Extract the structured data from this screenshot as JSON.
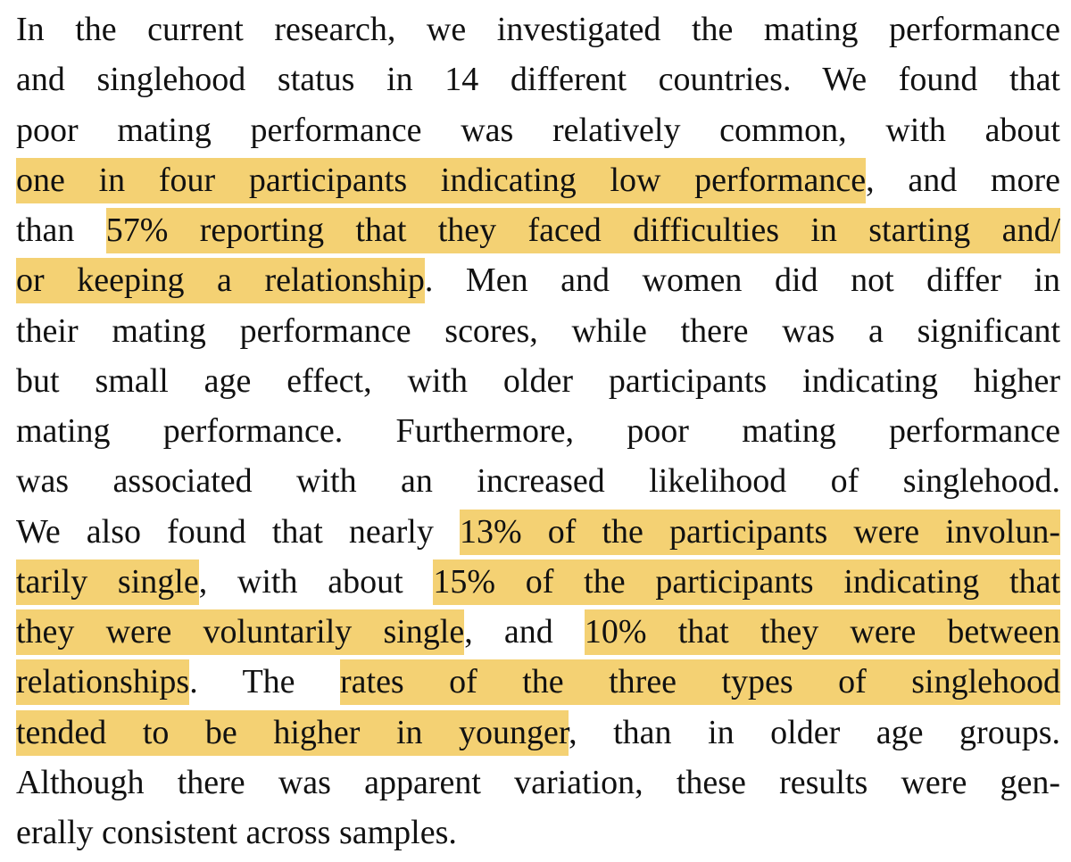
{
  "paragraph": {
    "lines": [
      {
        "segments": [
          {
            "text": "In the current research, we investigated the mating performance",
            "highlighted": false
          }
        ]
      },
      {
        "segments": [
          {
            "text": "and singlehood status in 14 different countries. We found that",
            "highlighted": false
          }
        ]
      },
      {
        "segments": [
          {
            "text": "poor mating performance was relatively common, with about",
            "highlighted": false
          }
        ]
      },
      {
        "segments": [
          {
            "text": "one in four participants indicating low performance",
            "highlighted": true
          },
          {
            "text": ", and more",
            "highlighted": false
          }
        ]
      },
      {
        "segments": [
          {
            "text": "than",
            "highlighted": false
          },
          {
            "text": "57% reporting that they faced difficulties in starting and/",
            "highlighted": true
          }
        ]
      },
      {
        "segments": [
          {
            "text": "or keeping a relationship",
            "highlighted": true
          },
          {
            "text": ". Men and women did not differ in",
            "highlighted": false
          }
        ]
      },
      {
        "segments": [
          {
            "text": "their mating performance scores, while there was a significant",
            "highlighted": false
          }
        ]
      },
      {
        "segments": [
          {
            "text": "but small age effect, with older participants indicating higher",
            "highlighted": false
          }
        ]
      },
      {
        "segments": [
          {
            "text": "mating performance. Furthermore, poor mating performance",
            "highlighted": false
          }
        ]
      },
      {
        "segments": [
          {
            "text": "was associated with an increased likelihood of singlehood.",
            "highlighted": false
          }
        ]
      },
      {
        "segments": [
          {
            "text": "We also found that nearly",
            "highlighted": false
          },
          {
            "text": "13% of the participants were involun-",
            "highlighted": true
          }
        ]
      },
      {
        "segments": [
          {
            "text": "tarily single",
            "highlighted": true
          },
          {
            "text": ", with about",
            "highlighted": false
          },
          {
            "text": "15% of the participants indicating that",
            "highlighted": true
          }
        ]
      },
      {
        "segments": [
          {
            "text": "they were voluntarily single",
            "highlighted": true
          },
          {
            "text": ", and",
            "highlighted": false
          },
          {
            "text": "10% that they were between",
            "highlighted": true
          }
        ]
      },
      {
        "segments": [
          {
            "text": "relationships",
            "highlighted": true
          },
          {
            "text": ". The",
            "highlighted": false
          },
          {
            "text": "rates of the three types of singlehood",
            "highlighted": true
          }
        ]
      },
      {
        "segments": [
          {
            "text": "tended to be higher in younger",
            "highlighted": true
          },
          {
            "text": ", than in older age groups.",
            "highlighted": false
          }
        ]
      },
      {
        "segments": [
          {
            "text": "Although there was apparent variation, these results were gen-",
            "highlighted": false
          }
        ]
      },
      {
        "segments": [
          {
            "text": "erally consistent across samples.",
            "highlighted": false
          }
        ]
      }
    ]
  }
}
